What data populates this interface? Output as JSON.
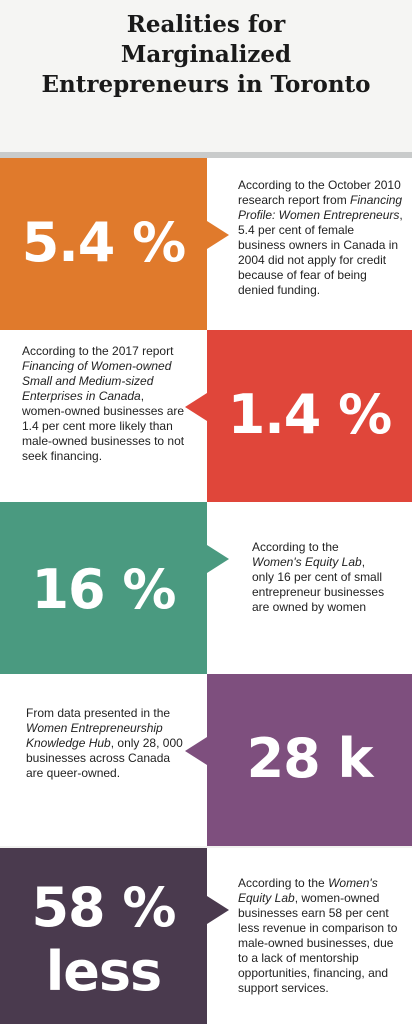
{
  "title": "Realities for Marginalized Entrepreneurs in Toronto",
  "colors": {
    "orange": "#e07a2c",
    "red": "#e0463a",
    "green": "#4a9a80",
    "purple": "#7e4f7e",
    "dark_purple": "#4a3a4e",
    "text_bg": "#ffffff"
  },
  "stats": [
    {
      "value": "5.4 %",
      "text_before": "According to the October 2010 research report from ",
      "source": "Financing Profile: Women Entrepreneurs",
      "text_after": ", 5.4 per cent of female business owners in Canada in 2004 did not apply for credit because of fear of being denied funding."
    },
    {
      "value": "1.4 %",
      "text_before": "According to the 2017 report ",
      "source": "Financing of Women-owned Small and Medium-sized Enterprises in Canada",
      "text_after": ", women-owned businesses are 1.4 per cent more likely than male-owned businesses to not seek financing."
    },
    {
      "value": "16 %",
      "text_before": "According to the ",
      "source": "Women's Equity Lab",
      "text_after": ", only 16 per cent of small entrepreneur businesses are owned by women"
    },
    {
      "value": "28 k",
      "text_before": "From data presented in the ",
      "source": "Women Entrepreneurship Knowledge Hub",
      "text_after": ", only 28, 000 businesses across Canada are queer-owned."
    },
    {
      "value_line1": "58 %",
      "value_line2": "less",
      "text_before": "According to the ",
      "source": "Women's Equity Lab",
      "text_after": ", women-owned businesses earn 58 per cent less revenue in comparison to male-owned businesses, due to a lack of mentorship opportunities, financing, and support services."
    }
  ]
}
